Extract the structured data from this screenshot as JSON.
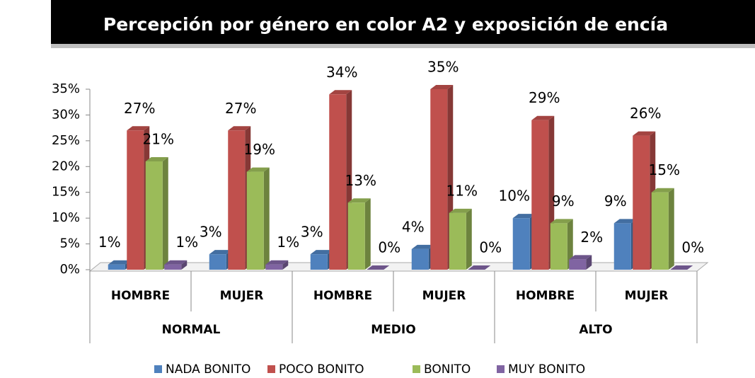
{
  "chart_data": {
    "type": "bar3d",
    "title": "Percepción por género en color A2  y exposición de encía",
    "categories": [
      "HOMBRE",
      "MUJER",
      "HOMBRE",
      "MUJER",
      "HOMBRE",
      "MUJER"
    ],
    "groups": [
      "NORMAL",
      "MEDIO",
      "ALTO"
    ],
    "series": [
      {
        "name": "NADA BONITO",
        "color": "#4f81bd",
        "values": [
          1,
          3,
          3,
          4,
          10,
          9
        ],
        "value_labels": [
          "1%",
          "3%",
          "3%",
          "4%",
          "10%",
          "9%"
        ]
      },
      {
        "name": "POCO BONITO",
        "color": "#c0504d",
        "values": [
          27,
          27,
          34,
          35,
          29,
          26
        ],
        "value_labels": [
          "27%",
          "27%",
          "34%",
          "35%",
          "29%",
          "26%"
        ]
      },
      {
        "name": "BONITO",
        "color": "#9bbb59",
        "values": [
          21,
          19,
          13,
          11,
          9,
          15
        ],
        "value_labels": [
          "21%",
          "19%",
          "13%",
          "11%",
          "9%",
          "15%"
        ]
      },
      {
        "name": "MUY BONITO",
        "color": "#8064a2",
        "values": [
          1,
          1,
          0,
          0,
          2,
          0
        ],
        "value_labels": [
          "1%",
          "1%",
          "0%",
          "0%",
          "2%",
          "0%"
        ]
      }
    ],
    "ylim": [
      0,
      35
    ],
    "yticks": [
      {
        "value": 0,
        "label": "0%"
      },
      {
        "value": 5,
        "label": "5%"
      },
      {
        "value": 10,
        "label": "10%"
      },
      {
        "value": 15,
        "label": "15%"
      },
      {
        "value": 20,
        "label": "20%"
      },
      {
        "value": 25,
        "label": "25%"
      },
      {
        "value": 30,
        "label": "30%"
      },
      {
        "value": 35,
        "label": "35%"
      }
    ],
    "legend": "bottom"
  }
}
